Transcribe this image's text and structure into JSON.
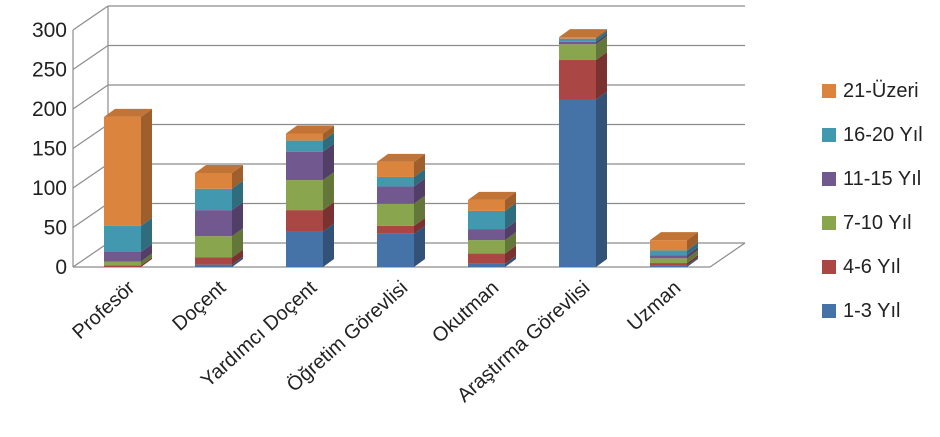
{
  "chart_data": {
    "type": "bar",
    "stacked": true,
    "three_d": true,
    "categories": [
      "Profesör",
      "Doçent",
      "Yardımcı Doçent",
      "Öğretim Görevlisi",
      "Okutman",
      "Araştırma Görevlisi",
      "Uzman"
    ],
    "series": [
      {
        "name": "1-3 Yıl",
        "color": "#4572A7",
        "values": [
          0,
          3,
          45,
          42,
          4,
          212,
          2
        ]
      },
      {
        "name": "4-6 Yıl",
        "color": "#AA4643",
        "values": [
          2,
          9,
          27,
          10,
          13,
          50,
          3
        ]
      },
      {
        "name": "7-10 Yıl",
        "color": "#89A54E",
        "values": [
          5,
          27,
          38,
          28,
          17,
          20,
          6
        ]
      },
      {
        "name": "11-15 Yıl",
        "color": "#71588F",
        "values": [
          12,
          33,
          36,
          22,
          14,
          3,
          4
        ]
      },
      {
        "name": "16-20 Yıl",
        "color": "#4198AF",
        "values": [
          33,
          27,
          14,
          12,
          23,
          4,
          6
        ]
      },
      {
        "name": "21-Üzeri",
        "color": "#DB843D",
        "values": [
          138,
          20,
          9,
          19,
          14,
          2,
          13
        ]
      }
    ],
    "ylim": [
      0,
      300
    ],
    "yticks": [
      "0",
      "50",
      "100",
      "150",
      "200",
      "250",
      "300"
    ],
    "grid": true,
    "legend_position": "right"
  }
}
